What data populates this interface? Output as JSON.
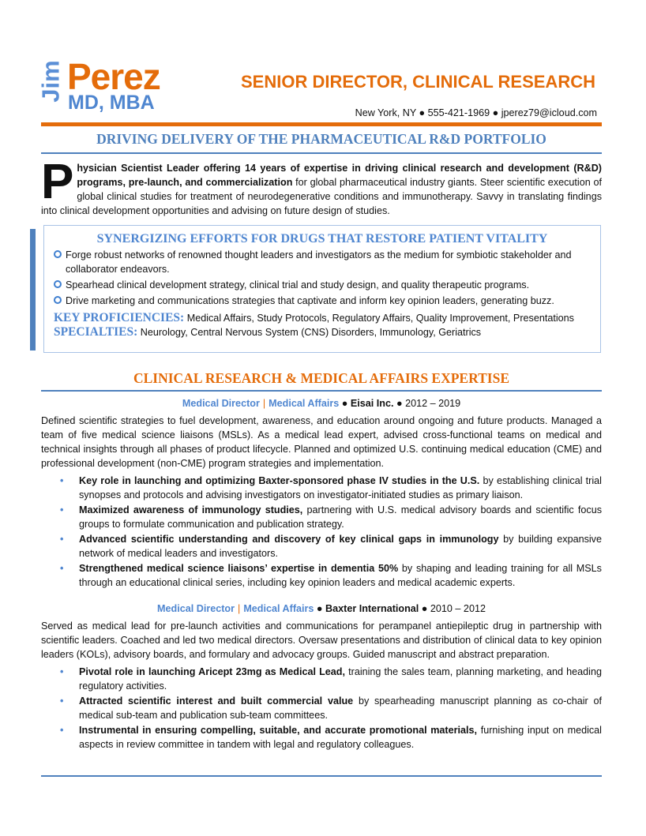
{
  "header": {
    "first_name": "Jim",
    "last_name": "Perez",
    "credentials": "MD, MBA",
    "title": "SENIOR DIRECTOR, CLINICAL RESEARCH",
    "contact": "New York, NY ● 555-421-1969 ● jperez79@icloud.com"
  },
  "tagline": "DRIVING DELIVERY OF THE PHARMACEUTICAL R&D PORTFOLIO",
  "summary": {
    "dropcap": "P",
    "bold": "hysician Scientist Leader offering 14 years of expertise in driving clinical research and development (R&D) programs, pre-launch, and commercialization",
    "rest": " for global pharmaceutical industry giants. Steer scientific execution of global clinical studies for treatment of neurodegenerative conditions and immunotherapy. Savvy in translating findings into clinical development opportunities and advising on future design of studies."
  },
  "highlights": {
    "heading": "SYNERGIZING EFFORTS FOR DRUGS THAT RESTORE PATIENT VITALITY",
    "bullets": [
      "Forge robust networks of renowned thought leaders and investigators as the medium for symbiotic stakeholder and collaborator endeavors.",
      "Spearhead clinical development strategy, clinical trial and study design, and quality therapeutic programs.",
      "Drive marketing and communications strategies that captivate and inform key opinion leaders, generating buzz."
    ],
    "proficiencies_label": "KEY PROFICIENCIES:",
    "proficiencies": " Medical Affairs, Study Protocols, Regulatory Affairs, Quality Improvement, Presentations",
    "specialties_label": "SPECIALTIES:",
    "specialties": " Neurology, Central Nervous System (CNS) Disorders, Immunology, Geriatrics"
  },
  "experience": {
    "heading": "CLINICAL RESEARCH & MEDICAL AFFAIRS EXPERTISE",
    "jobs": [
      {
        "role": "Medical Director",
        "sep": "|",
        "dept": "Medical Affairs",
        "company": " ● Eisai Inc.",
        "dates": " ● 2012 – 2019",
        "description": "Defined scientific strategies to fuel development, awareness, and education around ongoing and future products. Managed a team of five medical science liaisons (MSLs). As a medical lead expert, advised cross-functional teams on medical and technical insights through all phases of product lifecycle. Planned and optimized U.S. continuing medical education (CME) and professional development (non-CME) program strategies and implementation.",
        "bullets": [
          {
            "bold": "Key role in launching and optimizing Baxter-sponsored phase IV studies in the U.S.",
            "rest": " by establishing clinical trial synopses and protocols and advising investigators on investigator-initiated studies as primary liaison."
          },
          {
            "bold": "Maximized awareness of immunology studies,",
            "rest": " partnering with U.S. medical advisory boards and scientific focus groups to formulate communication and publication strategy."
          },
          {
            "bold": "Advanced scientific understanding and discovery of key clinical gaps in immunology",
            "rest": " by building expansive network of medical leaders and investigators."
          },
          {
            "bold": "Strengthened medical science liaisons’ expertise in dementia 50%",
            "rest": " by shaping and leading training for all MSLs through an educational clinical series, including key opinion leaders and medical academic experts."
          }
        ]
      },
      {
        "role": "Medical Director",
        "sep": "|",
        "dept": "Medical Affairs",
        "company": " ● Baxter International",
        "dates": " ● 2010 – 2012",
        "description": "Served as medical lead for pre-launch activities and communications for perampanel antiepileptic drug in partnership with scientific leaders. Coached and led two medical directors. Oversaw presentations and distribution of clinical data to key opinion leaders (KOLs), advisory boards, and formulary and advocacy groups. Guided manuscript and abstract preparation.",
        "bullets": [
          {
            "bold": "Pivotal role in launching Aricept 23mg as Medical Lead,",
            "rest": " training the sales team, planning marketing, and heading regulatory activities."
          },
          {
            "bold": "Attracted scientific interest and built commercial value",
            "rest": " by spearheading manuscript planning as co-chair of medical sub-team and publication sub-team committees."
          },
          {
            "bold": "Instrumental in ensuring compelling, suitable, and accurate promotional materials,",
            "rest": " furnishing input on medical aspects in review committee in tandem with legal and regulatory colleagues."
          }
        ]
      }
    ]
  },
  "colors": {
    "accent_orange": "#e46c0a",
    "accent_blue": "#4f81bd"
  }
}
